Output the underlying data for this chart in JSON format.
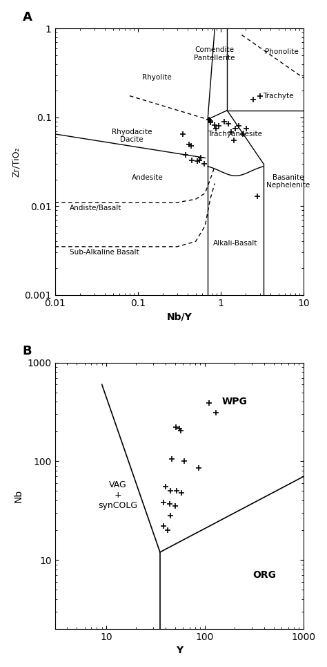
{
  "panel_A": {
    "xlabel": "Nb/Y",
    "ylabel": "Zr/TiO₂",
    "xlim": [
      0.01,
      10
    ],
    "ylim": [
      0.001,
      1
    ],
    "data_points": [
      [
        0.35,
        0.065
      ],
      [
        0.42,
        0.05
      ],
      [
        0.44,
        0.048
      ],
      [
        0.38,
        0.038
      ],
      [
        0.45,
        0.033
      ],
      [
        0.52,
        0.032
      ],
      [
        0.55,
        0.033
      ],
      [
        0.58,
        0.035
      ],
      [
        0.63,
        0.03
      ],
      [
        0.72,
        0.095
      ],
      [
        0.76,
        0.092
      ],
      [
        0.76,
        0.088
      ],
      [
        0.85,
        0.082
      ],
      [
        0.88,
        0.075
      ],
      [
        0.95,
        0.08
      ],
      [
        1.1,
        0.09
      ],
      [
        1.25,
        0.085
      ],
      [
        1.35,
        0.068
      ],
      [
        1.45,
        0.055
      ],
      [
        1.5,
        0.075
      ],
      [
        1.65,
        0.08
      ],
      [
        1.85,
        0.065
      ],
      [
        2.05,
        0.075
      ],
      [
        2.5,
        0.16
      ],
      [
        3.0,
        0.175
      ],
      [
        2.8,
        0.013
      ]
    ]
  },
  "panel_B": {
    "xlabel": "Y",
    "ylabel": "Nb",
    "xlim": [
      3,
      1000
    ],
    "ylim": [
      2,
      1000
    ],
    "data_points": [
      [
        46,
        105
      ],
      [
        62,
        100
      ],
      [
        87,
        85
      ],
      [
        51,
        220
      ],
      [
        55,
        215
      ],
      [
        57,
        205
      ],
      [
        110,
        390
      ],
      [
        130,
        310
      ],
      [
        40,
        55
      ],
      [
        45,
        50
      ],
      [
        52,
        50
      ],
      [
        58,
        48
      ],
      [
        38,
        38
      ],
      [
        44,
        37
      ],
      [
        38,
        22
      ],
      [
        42,
        20
      ],
      [
        45,
        28
      ],
      [
        50,
        35
      ]
    ]
  }
}
